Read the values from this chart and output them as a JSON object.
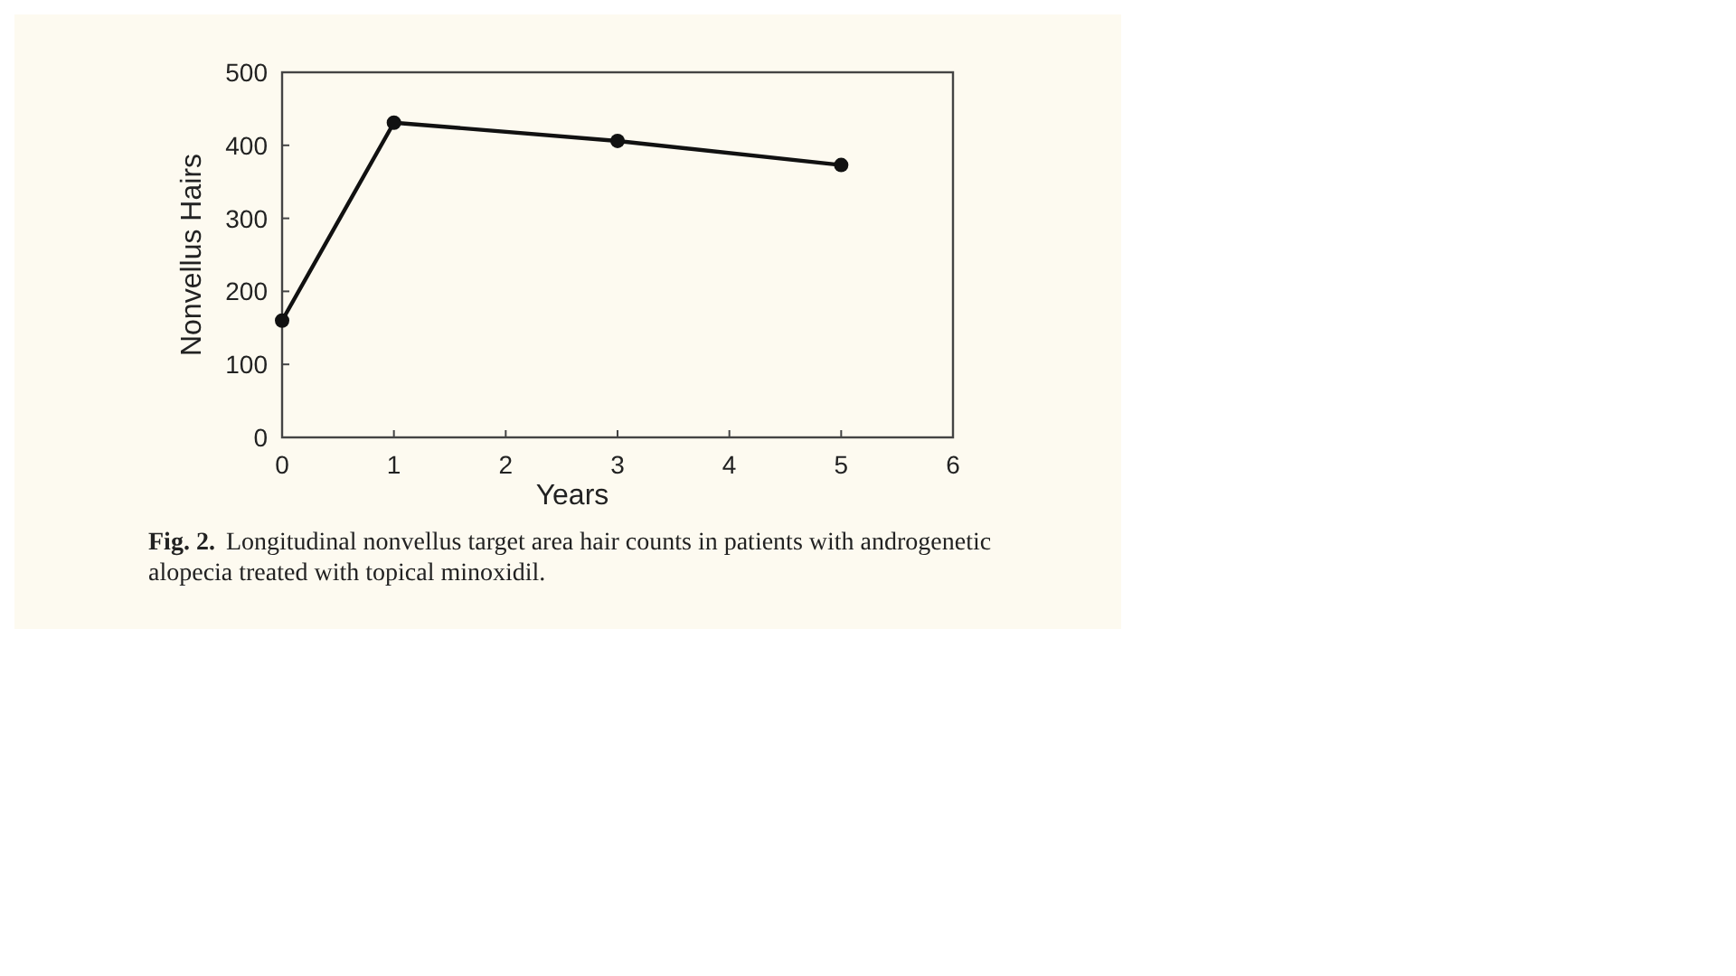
{
  "chart_data": {
    "type": "line",
    "xlabel": "Years",
    "ylabel": "Nonvellus Hairs",
    "x": [
      0,
      1,
      3,
      5
    ],
    "series": [
      {
        "color": "#111111",
        "values": [
          160,
          431,
          406,
          373
        ]
      }
    ],
    "xlim": [
      0,
      6
    ],
    "xticks": [
      0,
      1,
      2,
      3,
      4,
      5,
      6
    ],
    "ylim": [
      0,
      500
    ],
    "yticks": [
      0,
      100,
      200,
      300,
      400,
      500
    ],
    "grid": false,
    "marker": "circle",
    "line_style": "solid",
    "annotations": [
      "Fig. 2.",
      "Longitudinal nonvellus target area hair counts in patients with androgenetic alopecia treated with topical minoxidil."
    ]
  }
}
